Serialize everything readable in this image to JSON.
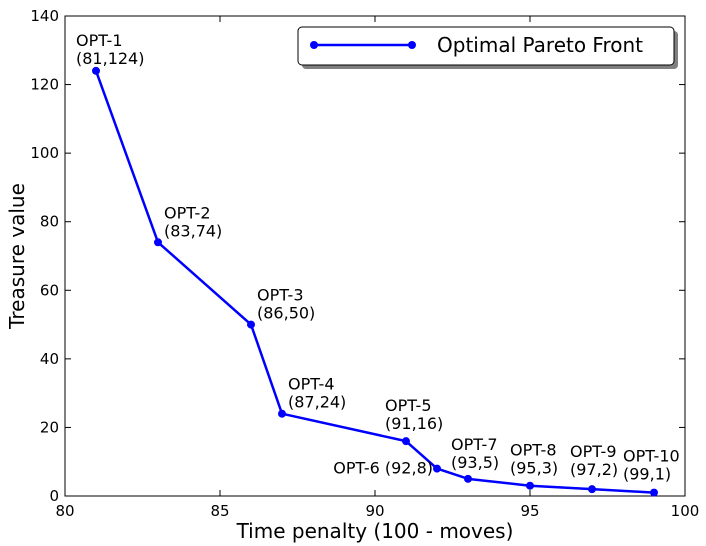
{
  "chart_data": {
    "type": "line",
    "xlabel": "Time penalty (100 - moves)",
    "ylabel": "Treasure value",
    "xlim": [
      80,
      100
    ],
    "ylim": [
      0,
      140
    ],
    "xticks": [
      80,
      85,
      90,
      95,
      100
    ],
    "yticks": [
      0,
      20,
      40,
      60,
      80,
      100,
      120,
      140
    ],
    "grid": false,
    "legend": {
      "position": "top-right"
    },
    "series": [
      {
        "name": "Optimal Pareto Front",
        "color": "#0000ff",
        "marker": "circle",
        "points": [
          {
            "x": 81,
            "y": 124
          },
          {
            "x": 83,
            "y": 74
          },
          {
            "x": 86,
            "y": 50
          },
          {
            "x": 87,
            "y": 24
          },
          {
            "x": 91,
            "y": 16
          },
          {
            "x": 92,
            "y": 8
          },
          {
            "x": 93,
            "y": 5
          },
          {
            "x": 95,
            "y": 3
          },
          {
            "x": 97,
            "y": 2
          },
          {
            "x": 99,
            "y": 1
          }
        ]
      }
    ],
    "annotations": [
      {
        "label": "OPT-1",
        "coords": "(81,124)"
      },
      {
        "label": "OPT-2",
        "coords": "(83,74)"
      },
      {
        "label": "OPT-3",
        "coords": "(86,50)"
      },
      {
        "label": "OPT-4",
        "coords": "(87,24)"
      },
      {
        "label": "OPT-5",
        "coords": "(91,16)"
      },
      {
        "label": "OPT-6 (92,8)",
        "coords": ""
      },
      {
        "label": "OPT-7",
        "coords": "(93,5)"
      },
      {
        "label": "OPT-8",
        "coords": "(95,3)"
      },
      {
        "label": "OPT-9",
        "coords": "(97,2)"
      },
      {
        "label": "OPT-10",
        "coords": "(99,1)"
      }
    ]
  }
}
